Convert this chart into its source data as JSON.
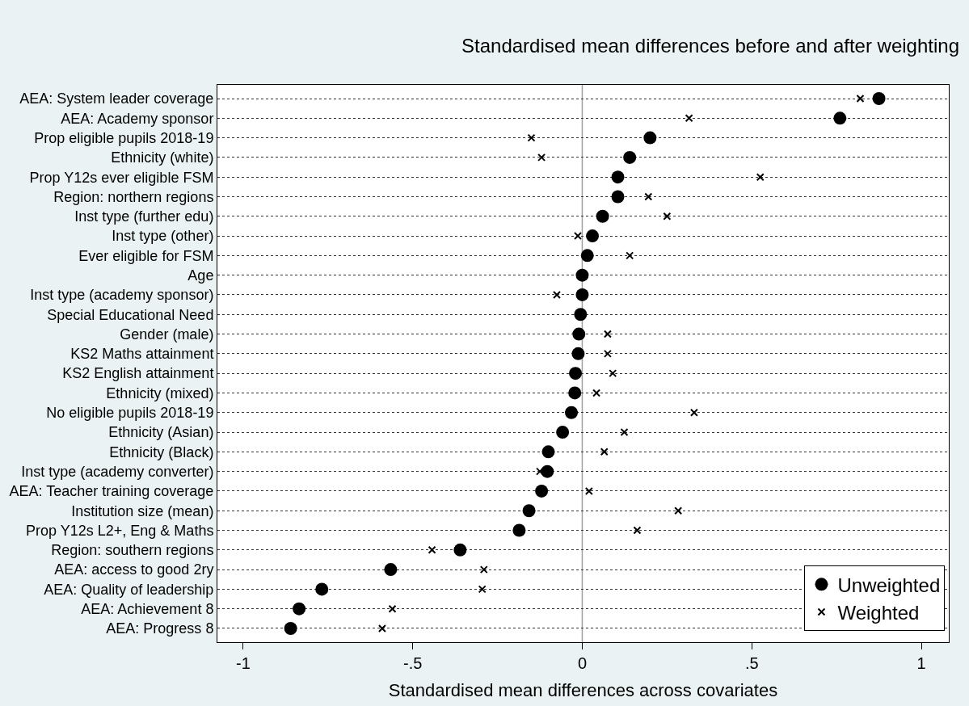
{
  "chart_data": {
    "type": "scatter",
    "title": "Standardised mean differences before and after weighting",
    "xlabel": "Standardised mean differences across covariates",
    "orientation": "horizontal",
    "categories": [
      "AEA: System leader coverage",
      "AEA: Academy sponsor",
      "Prop eligible pupils 2018-19",
      "Ethnicity (white)",
      "Prop Y12s ever eligible FSM",
      "Region: northern regions",
      "Inst type (further edu)",
      "Inst type (other)",
      "Ever eligible for FSM",
      "Age",
      "Inst type (academy sponsor)",
      "Special Educational Need",
      "Gender (male)",
      "KS2 Maths attainment",
      "KS2 English attainment",
      "Ethnicity (mixed)",
      "No eligible pupils 2018-19",
      "Ethnicity (Asian)",
      "Ethnicity (Black)",
      "Inst type (academy converter)",
      "AEA: Teacher training coverage",
      "Institution size (mean)",
      "Prop Y12s L2+, Eng & Maths",
      "Region: southern regions",
      "AEA: access to good 2ry",
      "AEA: Quality of leadership",
      "AEA: Achievement 8",
      "AEA: Progress 8"
    ],
    "series": [
      {
        "name": "Unweighted",
        "color": "#000000",
        "marker": "circle",
        "values": [
          0.875,
          0.76,
          0.2,
          0.14,
          0.105,
          0.105,
          0.06,
          0.03,
          0.015,
          0.0,
          0.0,
          -0.005,
          -0.01,
          -0.012,
          -0.02,
          -0.022,
          -0.032,
          -0.058,
          -0.1,
          -0.103,
          -0.12,
          -0.157,
          -0.186,
          -0.36,
          -0.565,
          -0.768,
          -0.835,
          -0.86
        ]
      },
      {
        "name": "Weighted",
        "color": "#000000",
        "marker": "cross",
        "values": [
          0.82,
          0.315,
          -0.15,
          -0.12,
          0.525,
          0.195,
          0.25,
          -0.013,
          0.14,
          null,
          -0.075,
          null,
          0.075,
          0.075,
          0.09,
          0.042,
          0.33,
          0.124,
          0.065,
          -0.125,
          0.02,
          0.283,
          0.162,
          -0.443,
          -0.29,
          -0.295,
          -0.56,
          -0.59
        ]
      }
    ],
    "xlim": [
      -1.076,
      1.081
    ],
    "xticks": [
      {
        "value": -1,
        "label": "-1"
      },
      {
        "value": -0.5,
        "label": "-.5"
      },
      0,
      {
        "value": 0.5,
        "label": ".5"
      },
      1
    ],
    "ref_lines": [
      {
        "axis": "x",
        "value": 0,
        "color": "#a0a0a0",
        "line_style": "solid"
      }
    ],
    "grid": "y",
    "legend": "bottom right"
  }
}
